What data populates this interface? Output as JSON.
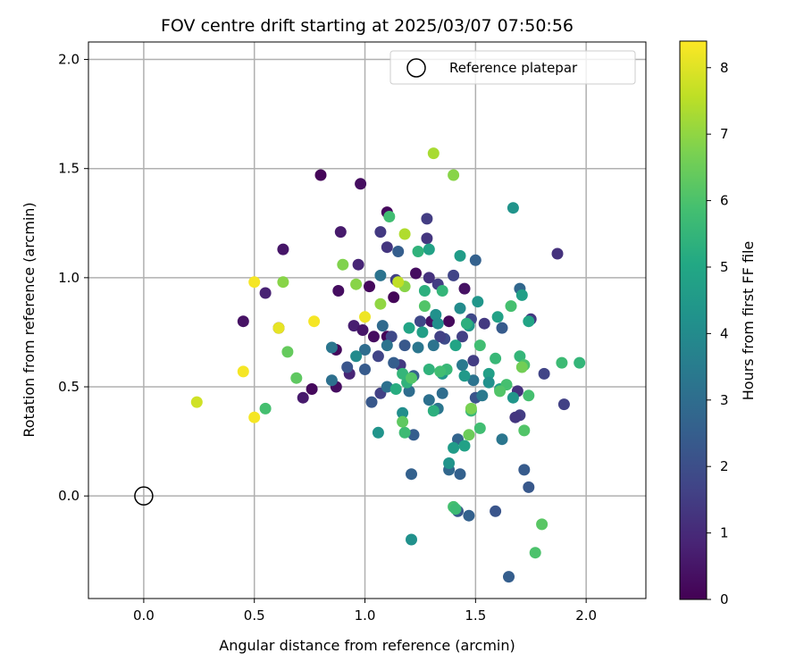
{
  "chart_data": {
    "type": "scatter",
    "title": "FOV centre drift starting at 2025/03/07 07:50:56",
    "xlabel": "Angular distance from reference (arcmin)",
    "ylabel": "Rotation from reference (arcmin)",
    "xlim": [
      -0.25,
      2.27
    ],
    "ylim": [
      -0.47,
      2.08
    ],
    "xticks": [
      0.0,
      0.5,
      1.0,
      1.5,
      2.0
    ],
    "yticks": [
      0.0,
      0.5,
      1.0,
      1.5,
      2.0
    ],
    "xtick_labels": [
      "0.0",
      "0.5",
      "1.0",
      "1.5",
      "2.0"
    ],
    "ytick_labels": [
      "0.0",
      "0.5",
      "1.0",
      "1.5",
      "2.0"
    ],
    "grid": true,
    "legend": {
      "placement": "top-right",
      "entries": [
        "Reference platepar"
      ]
    },
    "reference_point": {
      "x": 0.0,
      "y": 0.0
    },
    "colorbar": {
      "label": "Hours from first FF file",
      "range": [
        0,
        8.4
      ],
      "ticks": [
        0,
        1,
        2,
        3,
        4,
        5,
        6,
        7,
        8
      ],
      "tick_labels": [
        "0",
        "1",
        "2",
        "3",
        "4",
        "5",
        "6",
        "7",
        "8"
      ],
      "colormap": "viridis"
    },
    "points": [
      {
        "x": 0.8,
        "y": 1.47,
        "c": 0.1
      },
      {
        "x": 0.98,
        "y": 1.43,
        "c": 0.3
      },
      {
        "x": 1.1,
        "y": 1.3,
        "c": 0.2
      },
      {
        "x": 0.89,
        "y": 1.21,
        "c": 0.6
      },
      {
        "x": 0.63,
        "y": 1.13,
        "c": 0.5
      },
      {
        "x": 0.97,
        "y": 1.06,
        "c": 0.9
      },
      {
        "x": 0.55,
        "y": 0.93,
        "c": 0.8
      },
      {
        "x": 0.88,
        "y": 0.94,
        "c": 0.3
      },
      {
        "x": 1.02,
        "y": 0.96,
        "c": 0.2
      },
      {
        "x": 1.23,
        "y": 1.02,
        "c": 0.3
      },
      {
        "x": 1.45,
        "y": 0.95,
        "c": 0.4
      },
      {
        "x": 1.13,
        "y": 0.91,
        "c": 0.1
      },
      {
        "x": 0.45,
        "y": 0.8,
        "c": 0.4
      },
      {
        "x": 0.61,
        "y": 0.77,
        "c": 0.3
      },
      {
        "x": 0.95,
        "y": 0.78,
        "c": 0.7
      },
      {
        "x": 0.99,
        "y": 0.76,
        "c": 0.5
      },
      {
        "x": 1.3,
        "y": 0.8,
        "c": 0.4
      },
      {
        "x": 1.38,
        "y": 0.8,
        "c": 0.2
      },
      {
        "x": 0.87,
        "y": 0.67,
        "c": 0.2
      },
      {
        "x": 1.04,
        "y": 0.73,
        "c": 0.3
      },
      {
        "x": 1.1,
        "y": 0.73,
        "c": 0.1
      },
      {
        "x": 0.76,
        "y": 0.49,
        "c": 0.2
      },
      {
        "x": 0.72,
        "y": 0.45,
        "c": 0.6
      },
      {
        "x": 0.87,
        "y": 0.5,
        "c": 0.3
      },
      {
        "x": 0.93,
        "y": 0.56,
        "c": 0.9
      },
      {
        "x": 1.28,
        "y": 1.27,
        "c": 1.5
      },
      {
        "x": 1.28,
        "y": 1.18,
        "c": 1.3
      },
      {
        "x": 1.07,
        "y": 1.21,
        "c": 1.4
      },
      {
        "x": 1.1,
        "y": 1.14,
        "c": 1.3
      },
      {
        "x": 1.29,
        "y": 1.0,
        "c": 1.2
      },
      {
        "x": 1.33,
        "y": 0.97,
        "c": 1.5
      },
      {
        "x": 1.4,
        "y": 1.01,
        "c": 1.7
      },
      {
        "x": 1.14,
        "y": 0.99,
        "c": 1.6
      },
      {
        "x": 1.48,
        "y": 0.81,
        "c": 1.8
      },
      {
        "x": 1.54,
        "y": 0.79,
        "c": 1.4
      },
      {
        "x": 1.87,
        "y": 1.11,
        "c": 1.2
      },
      {
        "x": 1.75,
        "y": 0.81,
        "c": 1.4
      },
      {
        "x": 1.69,
        "y": 0.48,
        "c": 1.2
      },
      {
        "x": 1.7,
        "y": 0.37,
        "c": 1.5
      },
      {
        "x": 1.68,
        "y": 0.36,
        "c": 1.3
      },
      {
        "x": 1.9,
        "y": 0.42,
        "c": 1.6
      },
      {
        "x": 1.81,
        "y": 0.56,
        "c": 1.7
      },
      {
        "x": 1.44,
        "y": 0.73,
        "c": 1.6
      },
      {
        "x": 1.36,
        "y": 0.72,
        "c": 1.9
      },
      {
        "x": 1.49,
        "y": 0.62,
        "c": 1.5
      },
      {
        "x": 1.16,
        "y": 0.6,
        "c": 1.4
      },
      {
        "x": 1.12,
        "y": 0.73,
        "c": 1.8
      },
      {
        "x": 1.06,
        "y": 0.64,
        "c": 1.7
      },
      {
        "x": 1.07,
        "y": 0.47,
        "c": 1.6
      },
      {
        "x": 1.25,
        "y": 0.8,
        "c": 1.8
      },
      {
        "x": 1.34,
        "y": 0.73,
        "c": 1.6
      },
      {
        "x": 0.92,
        "y": 0.59,
        "c": 2.2
      },
      {
        "x": 1.0,
        "y": 0.58,
        "c": 2.4
      },
      {
        "x": 1.03,
        "y": 0.43,
        "c": 2.3
      },
      {
        "x": 1.13,
        "y": 0.61,
        "c": 2.5
      },
      {
        "x": 1.18,
        "y": 0.69,
        "c": 2.3
      },
      {
        "x": 1.22,
        "y": 0.55,
        "c": 2.6
      },
      {
        "x": 1.15,
        "y": 1.12,
        "c": 2.5
      },
      {
        "x": 1.5,
        "y": 1.08,
        "c": 2.6
      },
      {
        "x": 1.7,
        "y": 0.95,
        "c": 2.8
      },
      {
        "x": 1.62,
        "y": 0.77,
        "c": 2.4
      },
      {
        "x": 1.5,
        "y": 0.45,
        "c": 2.2
      },
      {
        "x": 1.72,
        "y": 0.12,
        "c": 2.4
      },
      {
        "x": 1.74,
        "y": 0.04,
        "c": 2.3
      },
      {
        "x": 1.59,
        "y": -0.07,
        "c": 2.2
      },
      {
        "x": 1.42,
        "y": -0.07,
        "c": 2.3
      },
      {
        "x": 1.47,
        "y": -0.09,
        "c": 2.6
      },
      {
        "x": 1.65,
        "y": -0.37,
        "c": 2.5
      },
      {
        "x": 1.21,
        "y": 0.1,
        "c": 2.6
      },
      {
        "x": 1.38,
        "y": 0.12,
        "c": 2.8
      },
      {
        "x": 1.43,
        "y": 0.1,
        "c": 2.6
      },
      {
        "x": 1.42,
        "y": 0.26,
        "c": 2.7
      },
      {
        "x": 1.22,
        "y": 0.28,
        "c": 2.5
      },
      {
        "x": 1.08,
        "y": 0.78,
        "c": 2.9
      },
      {
        "x": 0.85,
        "y": 0.68,
        "c": 3.3
      },
      {
        "x": 0.85,
        "y": 0.53,
        "c": 3.1
      },
      {
        "x": 1.0,
        "y": 0.67,
        "c": 3.0
      },
      {
        "x": 1.1,
        "y": 0.69,
        "c": 3.2
      },
      {
        "x": 1.1,
        "y": 0.5,
        "c": 3.1
      },
      {
        "x": 1.24,
        "y": 0.68,
        "c": 3.3
      },
      {
        "x": 1.31,
        "y": 0.69,
        "c": 3.2
      },
      {
        "x": 1.35,
        "y": 0.47,
        "c": 3.0
      },
      {
        "x": 1.33,
        "y": 0.4,
        "c": 3.3
      },
      {
        "x": 1.29,
        "y": 0.44,
        "c": 3.1
      },
      {
        "x": 1.44,
        "y": 0.6,
        "c": 3.4
      },
      {
        "x": 1.49,
        "y": 0.53,
        "c": 3.2
      },
      {
        "x": 1.53,
        "y": 0.46,
        "c": 3.4
      },
      {
        "x": 1.07,
        "y": 1.01,
        "c": 3.2
      },
      {
        "x": 1.62,
        "y": 0.26,
        "c": 3.3
      },
      {
        "x": 1.2,
        "y": 0.48,
        "c": 3.0
      },
      {
        "x": 0.96,
        "y": 0.64,
        "c": 4.0
      },
      {
        "x": 1.06,
        "y": 0.29,
        "c": 4.3
      },
      {
        "x": 1.17,
        "y": 0.38,
        "c": 4.1
      },
      {
        "x": 1.21,
        "y": -0.2,
        "c": 4.2
      },
      {
        "x": 1.38,
        "y": 0.15,
        "c": 4.3
      },
      {
        "x": 1.4,
        "y": 0.22,
        "c": 4.6
      },
      {
        "x": 1.45,
        "y": 0.23,
        "c": 4.8
      },
      {
        "x": 1.32,
        "y": 0.83,
        "c": 4.2
      },
      {
        "x": 1.43,
        "y": 0.86,
        "c": 4.0
      },
      {
        "x": 1.51,
        "y": 0.89,
        "c": 4.4
      },
      {
        "x": 1.47,
        "y": 0.78,
        "c": 4.5
      },
      {
        "x": 1.35,
        "y": 0.56,
        "c": 4.4
      },
      {
        "x": 1.26,
        "y": 0.75,
        "c": 4.7
      },
      {
        "x": 1.2,
        "y": 0.77,
        "c": 4.9
      },
      {
        "x": 1.29,
        "y": 1.13,
        "c": 4.8
      },
      {
        "x": 1.43,
        "y": 1.1,
        "c": 4.6
      },
      {
        "x": 1.67,
        "y": 1.32,
        "c": 4.3
      },
      {
        "x": 1.6,
        "y": 0.82,
        "c": 4.8
      },
      {
        "x": 1.71,
        "y": 0.92,
        "c": 4.7
      },
      {
        "x": 1.74,
        "y": 0.8,
        "c": 4.9
      },
      {
        "x": 1.56,
        "y": 0.56,
        "c": 4.7
      },
      {
        "x": 1.45,
        "y": 0.55,
        "c": 4.5
      },
      {
        "x": 1.56,
        "y": 0.52,
        "c": 4.2
      },
      {
        "x": 1.61,
        "y": 0.49,
        "c": 4.8
      },
      {
        "x": 1.67,
        "y": 0.45,
        "c": 4.4
      },
      {
        "x": 1.41,
        "y": 0.69,
        "c": 4.9
      },
      {
        "x": 1.33,
        "y": 0.79,
        "c": 4.1
      },
      {
        "x": 1.19,
        "y": 0.52,
        "c": 5.4
      },
      {
        "x": 1.14,
        "y": 0.49,
        "c": 5.2
      },
      {
        "x": 1.27,
        "y": 0.94,
        "c": 5.3
      },
      {
        "x": 1.35,
        "y": 0.94,
        "c": 5.5
      },
      {
        "x": 1.24,
        "y": 1.12,
        "c": 5.4
      },
      {
        "x": 1.11,
        "y": 1.28,
        "c": 5.8
      },
      {
        "x": 1.29,
        "y": 0.58,
        "c": 5.4
      },
      {
        "x": 1.37,
        "y": 0.58,
        "c": 5.6
      },
      {
        "x": 1.31,
        "y": 0.39,
        "c": 5.3
      },
      {
        "x": 1.48,
        "y": 0.39,
        "c": 5.6
      },
      {
        "x": 1.52,
        "y": 0.31,
        "c": 5.8
      },
      {
        "x": 1.4,
        "y": -0.05,
        "c": 5.9
      },
      {
        "x": 1.41,
        "y": -0.06,
        "c": 5.7
      },
      {
        "x": 1.77,
        "y": -0.26,
        "c": 6.0
      },
      {
        "x": 1.8,
        "y": -0.13,
        "c": 6.2
      },
      {
        "x": 1.72,
        "y": 0.3,
        "c": 6.1
      },
      {
        "x": 1.74,
        "y": 0.46,
        "c": 5.9
      },
      {
        "x": 1.59,
        "y": 0.63,
        "c": 5.6
      },
      {
        "x": 1.52,
        "y": 0.69,
        "c": 5.8
      },
      {
        "x": 1.7,
        "y": 0.64,
        "c": 5.5
      },
      {
        "x": 1.72,
        "y": 0.6,
        "c": 6.0
      },
      {
        "x": 1.89,
        "y": 0.61,
        "c": 5.7
      },
      {
        "x": 1.97,
        "y": 0.61,
        "c": 5.5
      },
      {
        "x": 1.64,
        "y": 0.51,
        "c": 5.9
      },
      {
        "x": 1.46,
        "y": 0.79,
        "c": 5.3
      },
      {
        "x": 1.66,
        "y": 0.87,
        "c": 5.9
      },
      {
        "x": 1.61,
        "y": 0.48,
        "c": 6.1
      },
      {
        "x": 1.18,
        "y": 0.29,
        "c": 5.7
      },
      {
        "x": 1.17,
        "y": 0.34,
        "c": 6.3
      },
      {
        "x": 1.17,
        "y": 0.56,
        "c": 5.5
      },
      {
        "x": 1.21,
        "y": 0.54,
        "c": 6.1
      },
      {
        "x": 1.34,
        "y": 0.57,
        "c": 5.8
      },
      {
        "x": 1.27,
        "y": 0.87,
        "c": 6.1
      },
      {
        "x": 0.69,
        "y": 0.54,
        "c": 6.3
      },
      {
        "x": 0.55,
        "y": 0.4,
        "c": 5.9
      },
      {
        "x": 0.65,
        "y": 0.66,
        "c": 6.4
      },
      {
        "x": 0.96,
        "y": 0.97,
        "c": 6.9
      },
      {
        "x": 0.9,
        "y": 1.06,
        "c": 6.8
      },
      {
        "x": 0.63,
        "y": 0.98,
        "c": 6.9
      },
      {
        "x": 1.18,
        "y": 0.96,
        "c": 6.9
      },
      {
        "x": 1.4,
        "y": 1.47,
        "c": 6.9
      },
      {
        "x": 1.47,
        "y": 0.28,
        "c": 6.5
      },
      {
        "x": 1.48,
        "y": 0.4,
        "c": 6.7
      },
      {
        "x": 1.71,
        "y": 0.59,
        "c": 6.6
      },
      {
        "x": 1.07,
        "y": 0.88,
        "c": 7.0
      },
      {
        "x": 1.18,
        "y": 1.2,
        "c": 7.4
      },
      {
        "x": 1.31,
        "y": 1.57,
        "c": 7.3
      },
      {
        "x": 1.15,
        "y": 0.98,
        "c": 7.6
      },
      {
        "x": 0.24,
        "y": 0.43,
        "c": 7.8
      },
      {
        "x": 0.61,
        "y": 0.77,
        "c": 8.1
      },
      {
        "x": 0.5,
        "y": 0.98,
        "c": 8.3
      },
      {
        "x": 0.45,
        "y": 0.57,
        "c": 8.3
      },
      {
        "x": 0.5,
        "y": 0.36,
        "c": 8.3
      },
      {
        "x": 0.77,
        "y": 0.8,
        "c": 8.3
      },
      {
        "x": 1.0,
        "y": 0.82,
        "c": 8.2
      }
    ]
  }
}
